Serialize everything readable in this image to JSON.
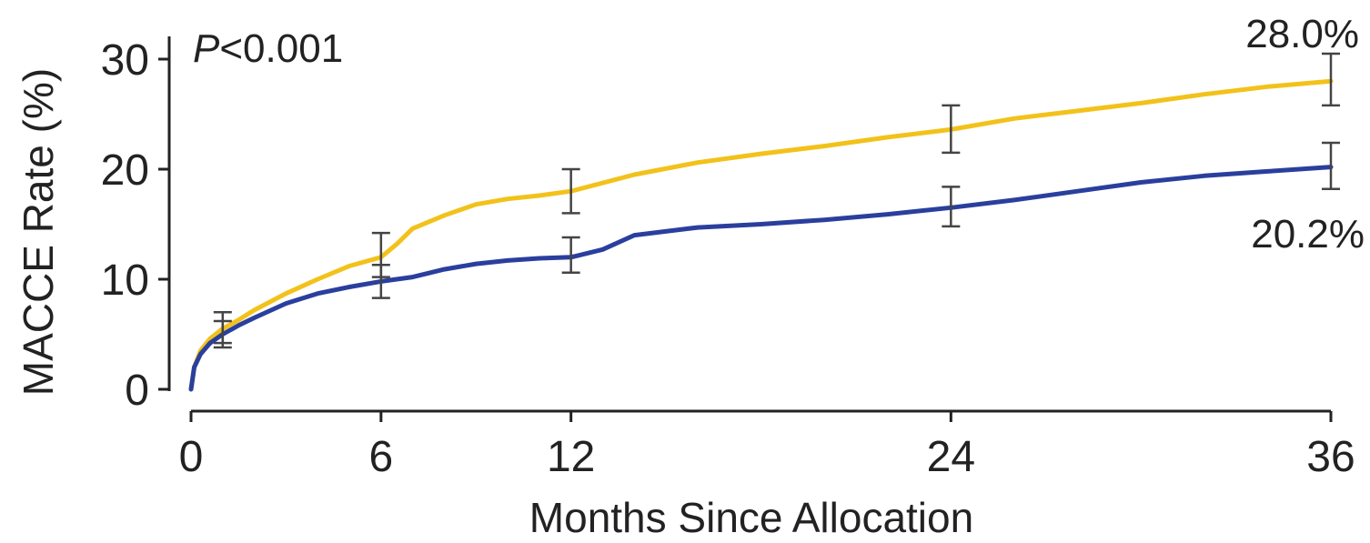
{
  "chart_data": {
    "type": "line",
    "xlabel": "Months Since Allocation",
    "ylabel": "MACCE Rate (%)",
    "xlim": [
      0,
      36
    ],
    "ylim": [
      0,
      30
    ],
    "x_ticks": [
      0,
      6,
      12,
      24,
      36
    ],
    "y_ticks": [
      0,
      10,
      20,
      30
    ],
    "grid": false,
    "p_value": {
      "symbol": "P",
      "text": "<0.001"
    },
    "series": [
      {
        "color": "#f2c21b",
        "end_label": "28.0%",
        "x": [
          0,
          0.1,
          0.3,
          0.6,
          1,
          1.5,
          2,
          3,
          4,
          5,
          6,
          6.5,
          7,
          8,
          9,
          10,
          11,
          12,
          14,
          16,
          18,
          20,
          22,
          24,
          26,
          28,
          30,
          32,
          34,
          36
        ],
        "y": [
          0,
          2.0,
          3.5,
          4.6,
          5.5,
          6.3,
          7.2,
          8.7,
          10.0,
          11.2,
          12.0,
          13.2,
          14.6,
          15.8,
          16.8,
          17.3,
          17.6,
          18.0,
          19.5,
          20.6,
          21.4,
          22.1,
          22.9,
          23.6,
          24.6,
          25.3,
          26.0,
          26.8,
          27.5,
          28.0
        ],
        "error_bars": [
          {
            "x": 1,
            "low": 4.2,
            "high": 7.0
          },
          {
            "x": 6,
            "low": 10.2,
            "high": 14.2
          },
          {
            "x": 12,
            "low": 16.0,
            "high": 20.0
          },
          {
            "x": 24,
            "low": 21.5,
            "high": 25.8
          },
          {
            "x": 36,
            "low": 25.8,
            "high": 30.5
          }
        ]
      },
      {
        "color": "#2a3f9d",
        "end_label": "20.2%",
        "x": [
          0,
          0.1,
          0.3,
          0.6,
          1,
          1.5,
          2,
          3,
          4,
          5,
          6,
          7,
          8,
          9,
          10,
          11,
          12,
          13,
          14,
          16,
          18,
          20,
          22,
          24,
          26,
          28,
          30,
          32,
          34,
          36
        ],
        "y": [
          0,
          2.0,
          3.2,
          4.2,
          5.0,
          5.8,
          6.5,
          7.8,
          8.7,
          9.3,
          9.8,
          10.2,
          10.9,
          11.4,
          11.7,
          11.9,
          12.0,
          12.7,
          14.0,
          14.7,
          15.0,
          15.4,
          15.9,
          16.5,
          17.2,
          18.0,
          18.8,
          19.4,
          19.8,
          20.2
        ],
        "error_bars": [
          {
            "x": 1,
            "low": 3.8,
            "high": 6.2
          },
          {
            "x": 6,
            "low": 8.3,
            "high": 11.3
          },
          {
            "x": 12,
            "low": 10.6,
            "high": 13.8
          },
          {
            "x": 24,
            "low": 14.8,
            "high": 18.4
          },
          {
            "x": 36,
            "low": 18.2,
            "high": 22.4
          }
        ]
      }
    ]
  }
}
